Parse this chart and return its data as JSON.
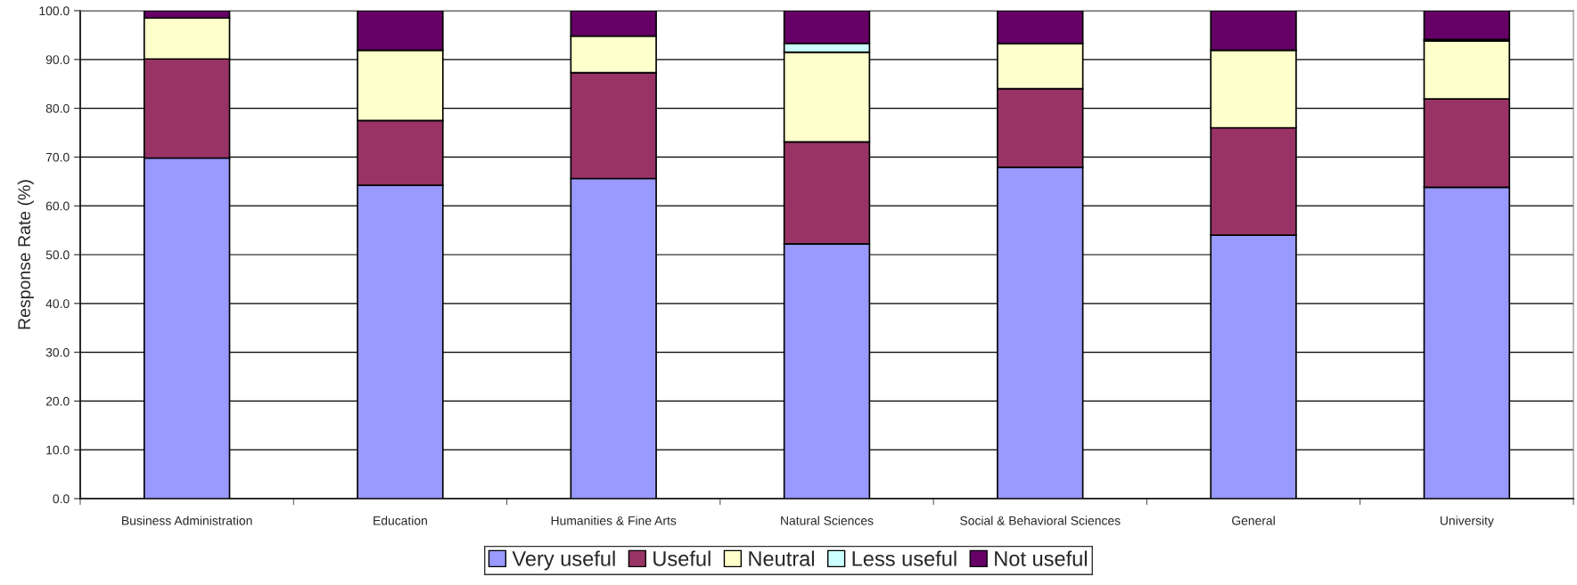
{
  "chart_data": {
    "type": "bar",
    "stacked": true,
    "ylabel": "Response Rate (%)",
    "categories": [
      "Business Administration",
      "Education",
      "Humanities & Fine Arts",
      "Natural Sciences",
      "Social & Behavioral Sciences",
      "General",
      "University"
    ],
    "series": [
      {
        "name": "Very useful",
        "color": "#9999ff",
        "values": [
          69.8,
          64.2,
          65.6,
          52.2,
          67.9,
          54.0,
          63.8
        ]
      },
      {
        "name": "Useful",
        "color": "#993366",
        "values": [
          20.3,
          13.3,
          21.7,
          20.9,
          16.1,
          22.0,
          18.1
        ]
      },
      {
        "name": "Neutral",
        "color": "#ffffcc",
        "values": [
          8.4,
          14.4,
          7.5,
          18.4,
          9.3,
          15.9,
          11.9
        ]
      },
      {
        "name": "Less useful",
        "color": "#ccffff",
        "values": [
          0,
          0,
          0,
          1.8,
          0,
          0,
          0.3
        ]
      },
      {
        "name": "Not useful",
        "color": "#660066",
        "values": [
          1.5,
          8.1,
          5.2,
          6.7,
          6.7,
          8.1,
          5.9
        ]
      }
    ],
    "ylim": [
      0,
      100
    ],
    "yticks": [
      {
        "value": 0,
        "label": "0.0"
      },
      {
        "value": 10,
        "label": "10.0"
      },
      {
        "value": 20,
        "label": "20.0"
      },
      {
        "value": 30,
        "label": "30.0"
      },
      {
        "value": 40,
        "label": "40.0"
      },
      {
        "value": 50,
        "label": "50.0"
      },
      {
        "value": 60,
        "label": "60.0"
      },
      {
        "value": 70,
        "label": "70.0"
      },
      {
        "value": 80,
        "label": "80.0"
      },
      {
        "value": 90,
        "label": "90.0"
      },
      {
        "value": 100,
        "label": "100.0"
      }
    ],
    "grid": "y",
    "legend": "bottom"
  }
}
